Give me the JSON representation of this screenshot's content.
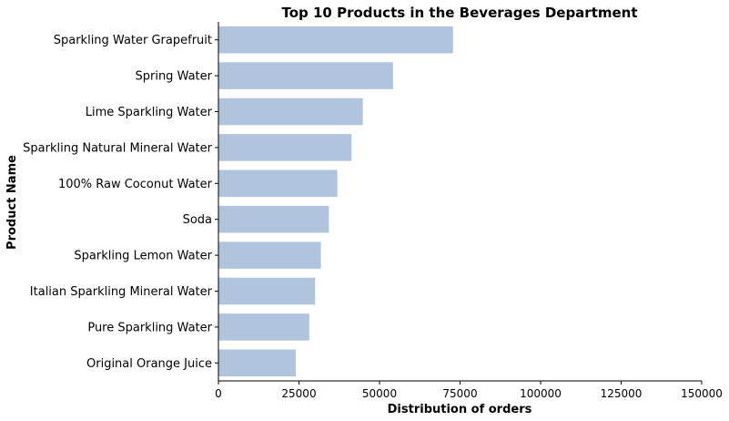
{
  "chart_data": {
    "type": "bar",
    "orientation": "horizontal",
    "title": "Top 10 Products in the Beverages Department",
    "xlabel": "Distribution of orders",
    "ylabel": "Product Name",
    "categories": [
      "Sparkling Water Grapefruit",
      "Spring Water",
      "Lime Sparkling Water",
      "Sparkling Natural Mineral Water",
      "100% Raw Coconut Water",
      "Soda",
      "Sparkling Lemon Water",
      "Italian Sparkling Mineral Water",
      "Pure Sparkling Water",
      "Original Orange Juice"
    ],
    "values": [
      72800,
      54200,
      44800,
      41300,
      36900,
      34300,
      31800,
      30000,
      28200,
      24000
    ],
    "xlim": [
      0,
      150000
    ],
    "xticks": [
      0,
      25000,
      50000,
      75000,
      100000,
      125000,
      150000
    ],
    "xtick_labels": [
      "0",
      "25000",
      "50000",
      "75000",
      "100000",
      "125000",
      "150000"
    ],
    "bar_color": "#b0c4de",
    "grid": false
  }
}
